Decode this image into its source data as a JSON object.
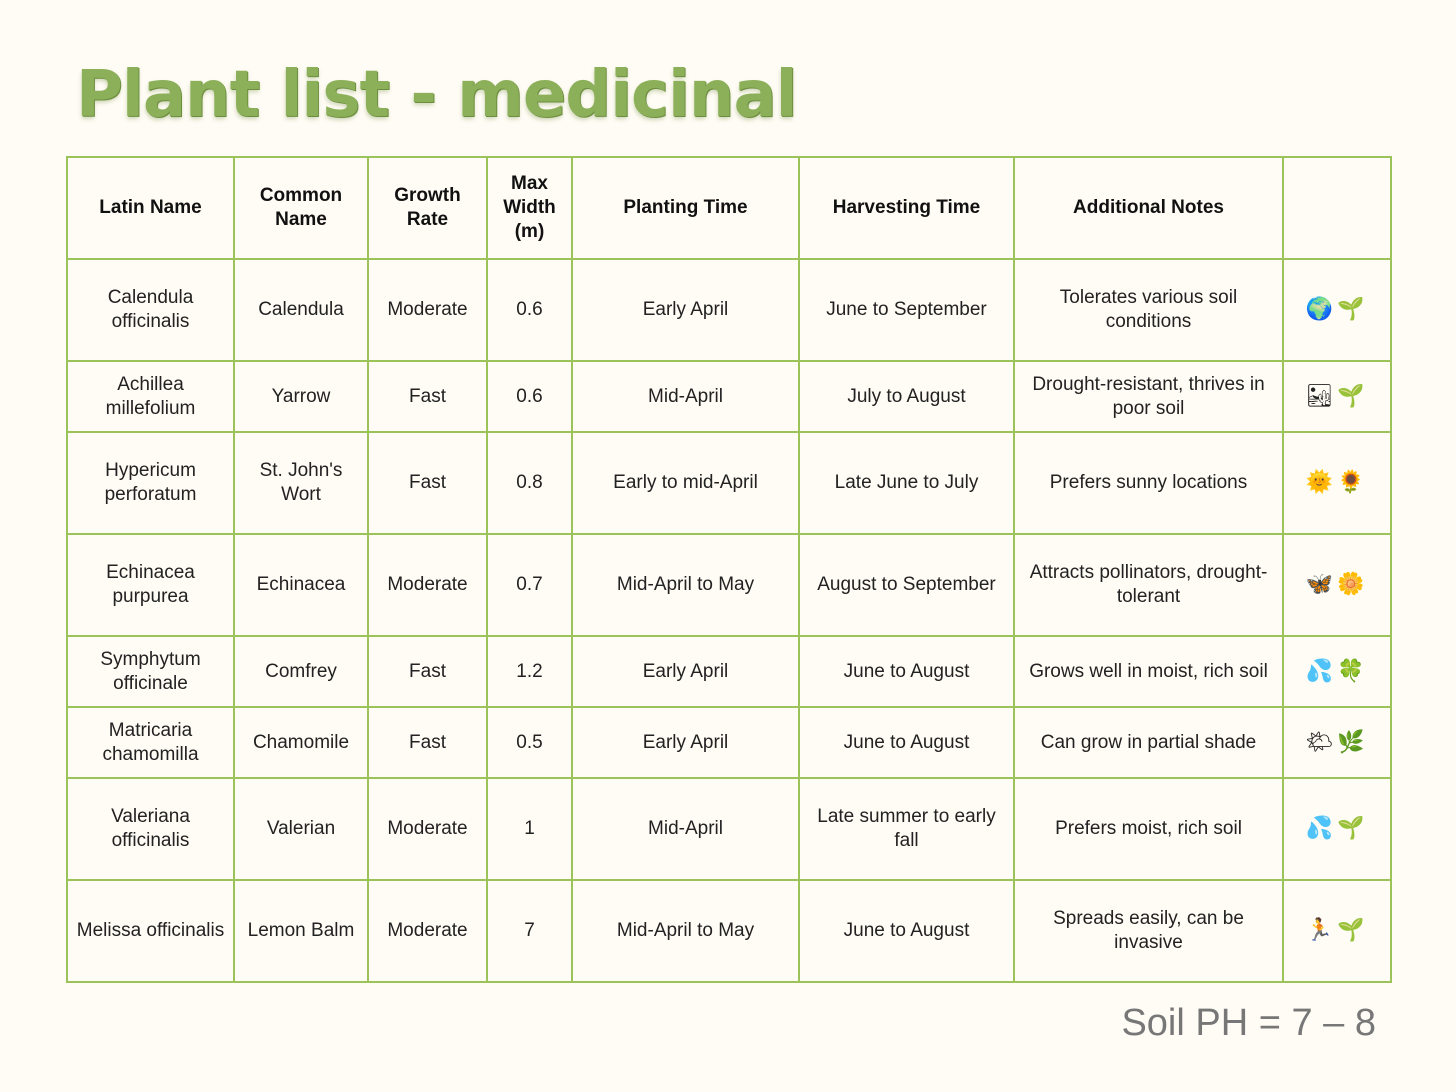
{
  "title": "Plant list - medicinal",
  "headers": [
    "Latin Name",
    "Common Name",
    "Growth Rate",
    "Max Width (m)",
    "Planting Time",
    "Harvesting Time",
    "Additional Notes",
    ""
  ],
  "rows": [
    {
      "latin": "Calendula officinalis",
      "common": "Calendula",
      "growth": "Moderate",
      "width": "0.6",
      "planting": "Early April",
      "harvest": "June to September",
      "notes": "Tolerates various soil conditions",
      "emoji": "🌍🌱"
    },
    {
      "latin": "Achillea millefolium",
      "common": "Yarrow",
      "growth": "Fast",
      "width": "0.6",
      "planting": "Mid-April",
      "harvest": "July to August",
      "notes": "Drought-resistant, thrives in poor soil",
      "emoji": "🏜🌱"
    },
    {
      "latin": "Hypericum perforatum",
      "common": "St. John's Wort",
      "growth": "Fast",
      "width": "0.8",
      "planting": "Early to mid-April",
      "harvest": "Late June to July",
      "notes": "Prefers sunny locations",
      "emoji": "🌞🌻"
    },
    {
      "latin": "Echinacea purpurea",
      "common": "Echinacea",
      "growth": "Moderate",
      "width": "0.7",
      "planting": "Mid-April to May",
      "harvest": "August to September",
      "notes": "Attracts pollinators, drought-tolerant",
      "emoji": "🦋🌼"
    },
    {
      "latin": "Symphytum officinale",
      "common": "Comfrey",
      "growth": "Fast",
      "width": "1.2",
      "planting": "Early April",
      "harvest": "June to August",
      "notes": "Grows well in moist, rich soil",
      "emoji": "💦🍀"
    },
    {
      "latin": "Matricaria chamomilla",
      "common": "Chamomile",
      "growth": "Fast",
      "width": "0.5",
      "planting": "Early April",
      "harvest": "June to August",
      "notes": "Can grow in partial shade",
      "emoji": "🌤🌿"
    },
    {
      "latin": "Valeriana officinalis",
      "common": "Valerian",
      "growth": "Moderate",
      "width": "1",
      "planting": "Mid-April",
      "harvest": "Late summer to early fall",
      "notes": "Prefers moist, rich soil",
      "emoji": "💦🌱"
    },
    {
      "latin": "Melissa officinalis",
      "common": "Lemon Balm",
      "growth": "Moderate",
      "width": "7",
      "planting": "Mid-April to May",
      "harvest": "June to August",
      "notes": "Spreads easily, can be invasive",
      "emoji": "🏃🌱"
    }
  ],
  "footer": "Soil PH = 7 – 8"
}
